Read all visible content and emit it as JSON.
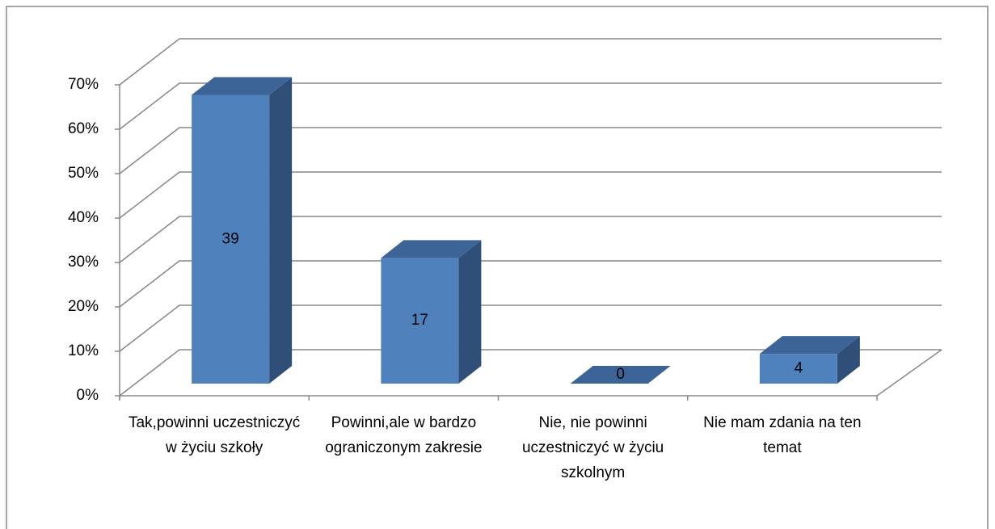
{
  "chart_data": {
    "type": "bar3d",
    "categories": [
      "Tak,powinni uczestniczyć w życiu szkoły",
      "Powinni,ale w bardzo ograniczonym zakresie",
      "Nie, nie powinni uczestniczyć w życiu szkolnym",
      "Nie mam zdania na ten temat"
    ],
    "values": [
      65,
      28.3,
      0,
      6.7
    ],
    "counts": [
      39,
      17,
      0,
      4
    ],
    "color": "#4f81bd",
    "ylim": [
      0,
      70
    ],
    "yticks": [
      {
        "value": 0,
        "label": "0%"
      },
      {
        "value": 10,
        "label": "10%"
      },
      {
        "value": 20,
        "label": "20%"
      },
      {
        "value": 30,
        "label": "30%"
      },
      {
        "value": 40,
        "label": "40%"
      },
      {
        "value": 50,
        "label": "50%"
      },
      {
        "value": 60,
        "label": "60%"
      },
      {
        "value": 70,
        "label": "70%"
      }
    ],
    "grid": true
  }
}
